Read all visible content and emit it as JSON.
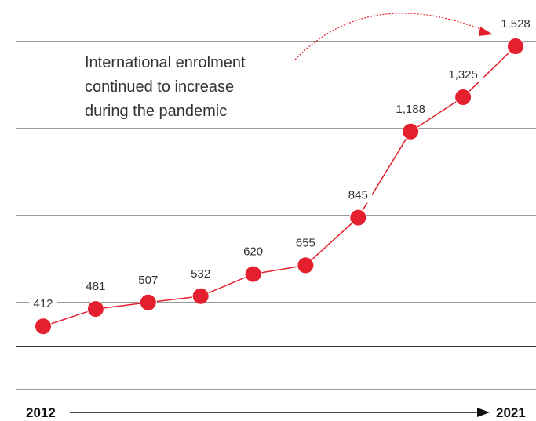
{
  "chart_data": {
    "type": "line",
    "series": [
      {
        "values": [
          412,
          481,
          507,
          532,
          620,
          655,
          845,
          1188,
          1325,
          1528
        ],
        "labels": [
          "412",
          "481",
          "507",
          "532",
          "620",
          "655",
          "845",
          "1,188",
          "1,325",
          "1,528"
        ]
      }
    ],
    "x_start_label": "2012",
    "x_end_label": "2021",
    "annotation": [
      "International enrolment",
      "continued to increase",
      "during the pandemic"
    ],
    "ylim": [
      150,
      1650
    ],
    "grid": true,
    "colors": {
      "series": "#e5202e",
      "grid": "#333333",
      "text": "#333333"
    }
  }
}
